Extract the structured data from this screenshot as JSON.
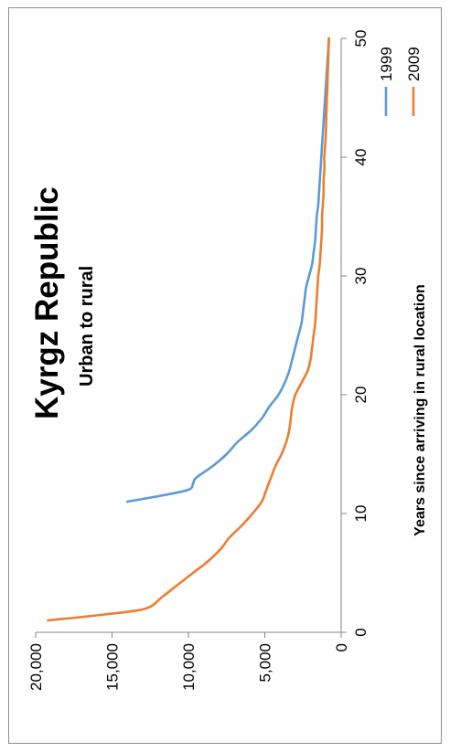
{
  "chart_data": {
    "type": "line",
    "title": "Kyrgz Republic",
    "subtitle": "Urban to rural",
    "xlabel": "Years since arriving in rural location",
    "ylabel": "",
    "xlim": [
      0,
      50
    ],
    "ylim": [
      0,
      20000
    ],
    "x_ticks": [
      "0",
      "10",
      "20",
      "30",
      "40",
      "50"
    ],
    "y_ticks": [
      "0",
      "5,000",
      "10,000",
      "15,000",
      "20,000"
    ],
    "grid": false,
    "legend_position": "top-right",
    "series": [
      {
        "name": "1999",
        "color": "#5b9bd5",
        "x": [
          11,
          11.5,
          12,
          12.5,
          13,
          14,
          15,
          16,
          17,
          18,
          19,
          20,
          21,
          22,
          23,
          24,
          25,
          26,
          27,
          28,
          29,
          30,
          31,
          32,
          33,
          34,
          35,
          36,
          37,
          38,
          39,
          40,
          41,
          42,
          43,
          44,
          45,
          46,
          47,
          48,
          49,
          50
        ],
        "y": [
          14000,
          11800,
          10000,
          9700,
          9500,
          8400,
          7500,
          6800,
          5900,
          5200,
          4700,
          4100,
          3700,
          3400,
          3200,
          3000,
          2800,
          2600,
          2500,
          2400,
          2300,
          2100,
          1900,
          1800,
          1700,
          1650,
          1600,
          1500,
          1450,
          1400,
          1350,
          1300,
          1250,
          1200,
          1150,
          1100,
          1050,
          1000,
          950,
          900,
          850,
          800
        ]
      },
      {
        "name": "2009",
        "color": "#ed7d31",
        "x": [
          1,
          1.5,
          2,
          3,
          4,
          5,
          6,
          7,
          7.5,
          8,
          9,
          10,
          11,
          12,
          13,
          14,
          15,
          16,
          17,
          18,
          19,
          20,
          21,
          22,
          23,
          24,
          25,
          26,
          27,
          28,
          29,
          30,
          31,
          32,
          33,
          34,
          35,
          36,
          37,
          38,
          39,
          40,
          41,
          42,
          43,
          44,
          45,
          46,
          47,
          48,
          49,
          50
        ],
        "y": [
          19200,
          15500,
          12800,
          11700,
          10700,
          9700,
          8700,
          7900,
          7600,
          7300,
          6500,
          5800,
          5200,
          4900,
          4600,
          4300,
          3900,
          3600,
          3400,
          3300,
          3200,
          3000,
          2600,
          2200,
          2000,
          1900,
          1800,
          1700,
          1650,
          1600,
          1550,
          1500,
          1400,
          1350,
          1300,
          1250,
          1250,
          1200,
          1150,
          1150,
          1100,
          1100,
          1050,
          1000,
          980,
          960,
          930,
          900,
          880,
          850,
          830,
          800
        ]
      }
    ]
  }
}
